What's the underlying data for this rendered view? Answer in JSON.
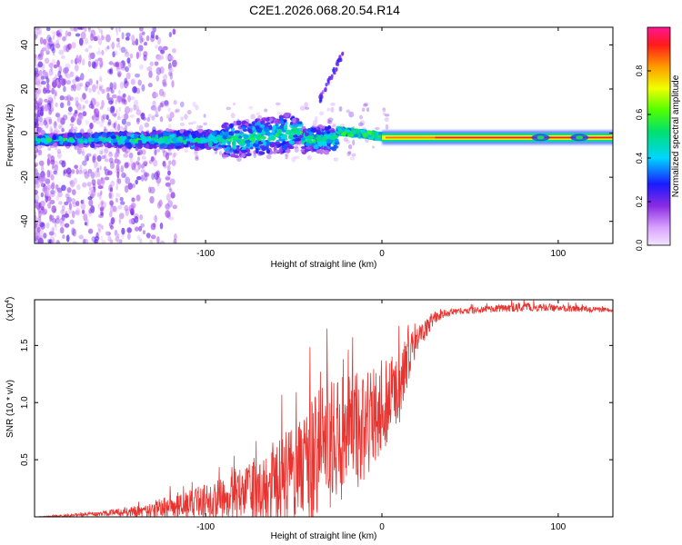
{
  "figure": {
    "title": "C2E1.2026.068.20.54.R14"
  },
  "colors": {
    "snr_line": "#e8332f",
    "axis": "#000000",
    "background": "#ffffff"
  },
  "chart_data": [
    {
      "type": "heatmap",
      "name": "spectrogram",
      "xlabel": "Height of straight line (km)",
      "ylabel": "Frequency (Hz)",
      "xlim": [
        -197,
        131
      ],
      "ylim": [
        -50,
        48
      ],
      "xticks": [
        -100,
        0,
        100
      ],
      "xtick_labels": [
        "-100",
        "0",
        "100"
      ],
      "yticks": [
        -40,
        -20,
        0,
        20,
        40
      ],
      "ytick_labels": [
        "-40",
        "-20",
        "0",
        "20",
        "40"
      ],
      "colorbar": {
        "label": "Normalized spectral amplitude",
        "range": [
          0,
          1
        ],
        "ticks": [
          0.0,
          0.2,
          0.4,
          0.6,
          0.8
        ],
        "tick_labels": [
          "0.0",
          "0.2",
          "0.4",
          "0.6",
          "0.8"
        ],
        "colormap": "rainbow (magenta-blue-cyan-green-yellow-red)"
      },
      "features": [
        {
          "x_range": [
            -197,
            -25
          ],
          "freq_center": -3,
          "freq_spread": 8,
          "amplitude": 0.3,
          "note": "scattered carrier"
        },
        {
          "x_range": [
            -25,
            0
          ],
          "freq_center": 0,
          "freq_spread": 2,
          "amplitude": 0.55
        },
        {
          "x_range": [
            0,
            131
          ],
          "freq_center": -2,
          "freq_spread": 1,
          "amplitude": 0.95,
          "note": "stable carrier"
        },
        {
          "x_range": [
            -34,
            -22
          ],
          "freq_center": 27,
          "note": "ghost track rising"
        }
      ]
    },
    {
      "type": "line",
      "name": "snr",
      "xlabel": "Height of straight line (km)",
      "ylabel": "SNR (10 * v/v)",
      "y_scale_label": "(x10",
      "y_scale_exponent": "4",
      "xlim": [
        -197,
        131
      ],
      "ylim": [
        0,
        1.9
      ],
      "xticks": [
        -100,
        0,
        100
      ],
      "xtick_labels": [
        "-100",
        "0",
        "100"
      ],
      "yticks": [
        0.5,
        1.0,
        1.5
      ],
      "ytick_labels": [
        "0.5",
        "1.0",
        "1.5"
      ],
      "series": [
        {
          "name": "SNR",
          "x": [
            -197,
            -180,
            -160,
            -140,
            -130,
            -120,
            -110,
            -100,
            -90,
            -80,
            -70,
            -60,
            -50,
            -40,
            -30,
            -20,
            -10,
            0,
            10,
            20,
            30,
            40,
            60,
            80,
            100,
            131
          ],
          "y": [
            0.0,
            0.01,
            0.03,
            0.05,
            0.07,
            0.1,
            0.12,
            0.15,
            0.18,
            0.22,
            0.26,
            0.32,
            0.42,
            0.55,
            0.7,
            0.8,
            0.85,
            1.0,
            1.2,
            1.55,
            1.75,
            1.8,
            1.82,
            1.84,
            1.83,
            1.81
          ],
          "noise_envelope": [
            0.0,
            0.01,
            0.02,
            0.05,
            0.07,
            0.1,
            0.12,
            0.15,
            0.18,
            0.22,
            0.28,
            0.36,
            0.45,
            0.55,
            0.6,
            0.6,
            0.5,
            0.4,
            0.35,
            0.12,
            0.05,
            0.03,
            0.03,
            0.04,
            0.03,
            0.02
          ]
        }
      ]
    }
  ]
}
